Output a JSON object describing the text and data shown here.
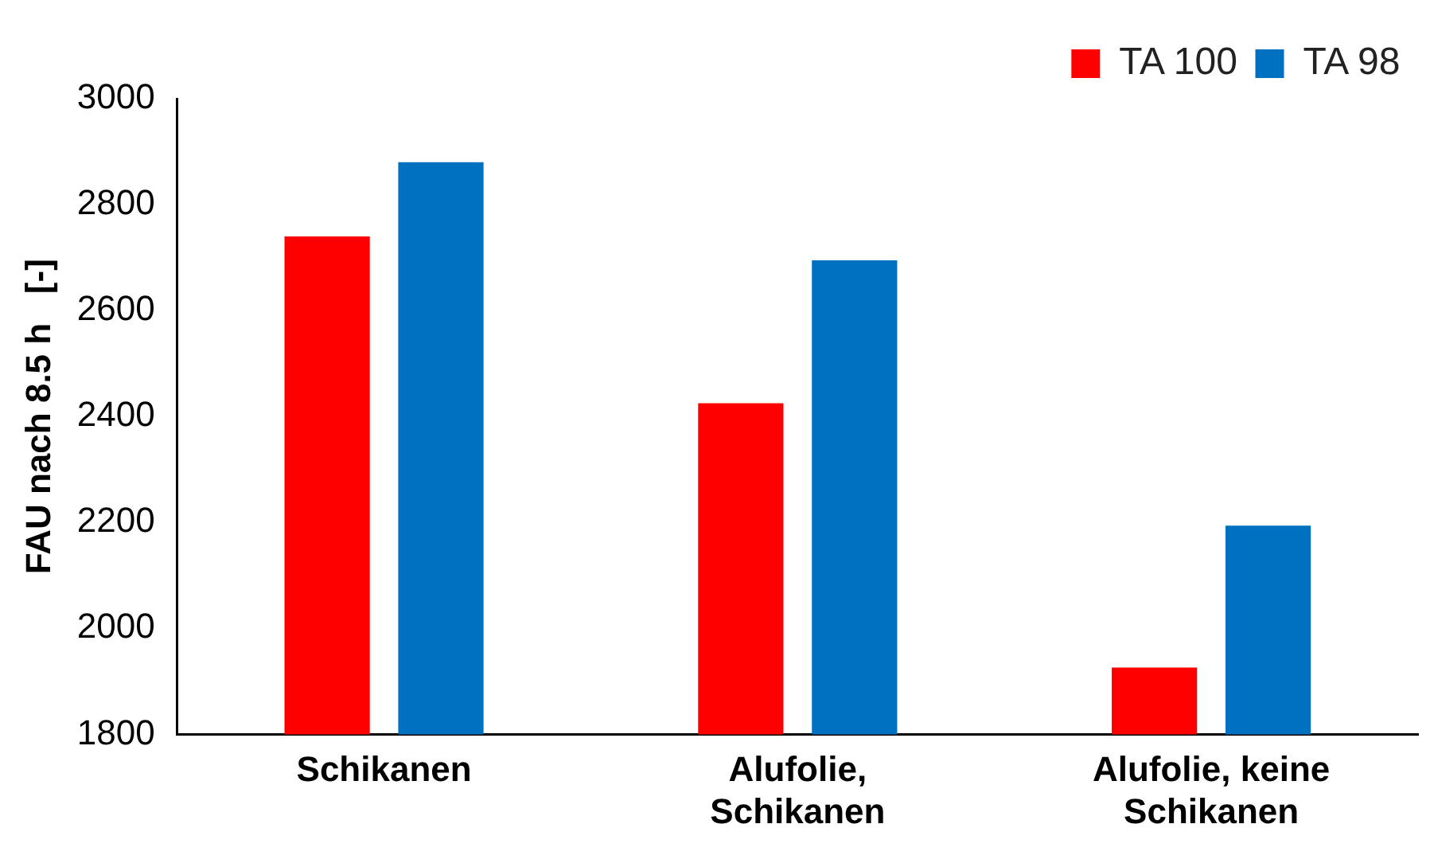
{
  "chart_data": {
    "type": "bar",
    "ylabel": "FAU nach 8.5 h   [-]",
    "categories": [
      "Schikanen",
      "Alufolie, Schikanen",
      "Alufolie, keine Schikanen"
    ],
    "series": [
      {
        "name": "TA 100",
        "color": "#ff0000",
        "values": [
          2740,
          2425,
          1926
        ]
      },
      {
        "name": "TA 98",
        "color": "#0070c0",
        "values": [
          2880,
          2695,
          2194
        ]
      }
    ],
    "ylim": [
      1800,
      3000
    ],
    "yticks": [
      1800,
      2000,
      2200,
      2400,
      2600,
      2800,
      3000
    ],
    "grid": false,
    "legend": "top right"
  }
}
